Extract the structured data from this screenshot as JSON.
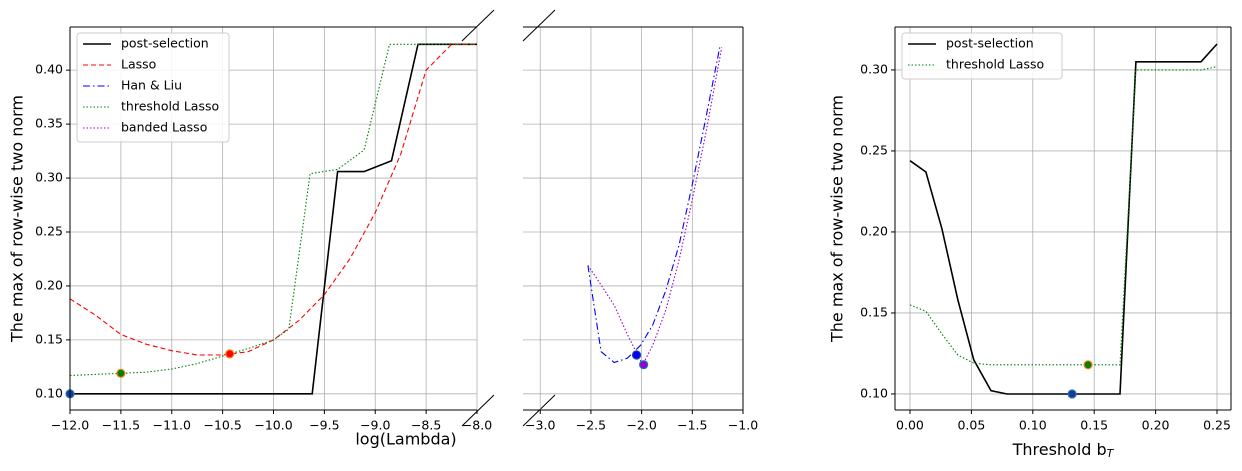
{
  "chart_data": [
    {
      "type": "line",
      "ylabel": "The max of row-wise two norm",
      "xlabel": "log(Lambda)",
      "xlim": [
        -12,
        -8
      ],
      "ylim": [
        0.085,
        0.44
      ],
      "grid": true,
      "legend": "upper left",
      "xticks": [
        {
          "value": -12,
          "label": "−12.0"
        },
        {
          "value": -11.5,
          "label": "−11.5"
        },
        {
          "value": -11,
          "label": "−11.0"
        },
        {
          "value": -10.5,
          "label": "−10.5"
        },
        {
          "value": -10,
          "label": "−10.0"
        },
        {
          "value": -9.5,
          "label": "−9.5"
        },
        {
          "value": -9,
          "label": "−9.0"
        },
        {
          "value": -8.5,
          "label": "−8.5"
        },
        {
          "value": -8,
          "label": "−8.0"
        }
      ],
      "yticks": [
        {
          "value": 0.1,
          "label": "0.10"
        },
        0.15,
        {
          "value": 0.2,
          "label": "0.20"
        },
        0.25,
        {
          "value": 0.3,
          "label": "0.30"
        },
        0.35,
        {
          "value": 0.4,
          "label": "0.40"
        }
      ],
      "series": [
        {
          "name": "post-selection",
          "color": "#000000",
          "dash": "none",
          "width": 1.6,
          "x": [
            -12,
            -9.62,
            -9.37,
            -9.11,
            -8.84,
            -8.58,
            -8.0
          ],
          "values": [
            0.1,
            0.1,
            0.306,
            0.306,
            0.316,
            0.424,
            0.424
          ]
        },
        {
          "name": "Lasso",
          "color": "#ff0000",
          "dash": "5,3",
          "width": 1.1,
          "x": [
            -12,
            -11.75,
            -11.5,
            -11.25,
            -11.0,
            -10.75,
            -10.5,
            -10.25,
            -10.0,
            -9.75,
            -9.5,
            -9.25,
            -9.0,
            -8.75,
            -8.5,
            -8.25,
            -8.0
          ],
          "values": [
            0.188,
            0.173,
            0.155,
            0.146,
            0.14,
            0.136,
            0.136,
            0.139,
            0.15,
            0.168,
            0.192,
            0.225,
            0.268,
            0.322,
            0.4,
            0.424,
            0.424
          ]
        },
        {
          "name": "Han & Liu",
          "color": "#0000ff",
          "dash": "7,3,1.5,3",
          "width": 1.1,
          "x": [],
          "values": []
        },
        {
          "name": "threshold Lasso",
          "color": "#008000",
          "dash": "1.5,2",
          "width": 1.1,
          "x": [
            -12,
            -11.75,
            -11.5,
            -11.25,
            -11.0,
            -10.75,
            -10.5,
            -10.25,
            -10.0,
            -9.85,
            -9.64,
            -9.37,
            -9.11,
            -8.86,
            -8.0
          ],
          "values": [
            0.117,
            0.118,
            0.119,
            0.12,
            0.123,
            0.128,
            0.135,
            0.142,
            0.15,
            0.16,
            0.304,
            0.308,
            0.326,
            0.424,
            0.424
          ]
        },
        {
          "name": "banded Lasso",
          "color": "#9400d3",
          "dash": "1.5,2",
          "width": 1.1,
          "x": [],
          "values": []
        }
      ],
      "points": [
        {
          "x": -12,
          "y": 0.1,
          "color": "#1a3a9a",
          "edgecolor": "#1f77b4"
        },
        {
          "x": -11.5,
          "y": 0.119,
          "color": "#008000",
          "edgecolor": "#ff7f0e"
        },
        {
          "x": -10.43,
          "y": 0.137,
          "color": "#ff0000",
          "edgecolor": "#ff7f0e"
        }
      ]
    },
    {
      "type": "line",
      "xlim": [
        -3.17,
        -1.0
      ],
      "ylim": [
        0.085,
        0.44
      ],
      "grid": true,
      "xticks": [
        {
          "value": -3,
          "label": "−3.0"
        },
        {
          "value": -2.5,
          "label": "−2.5"
        },
        {
          "value": -2,
          "label": "−2.0"
        },
        {
          "value": -1.5,
          "label": "−1.5"
        },
        {
          "value": -1,
          "label": "−1.0"
        }
      ],
      "yticks": [
        0.1,
        0.15,
        0.2,
        0.25,
        0.3,
        0.35,
        0.4
      ],
      "series": [
        {
          "color": "#0000ff",
          "dash": "7,3,1.5,3",
          "width": 1.1,
          "x": [
            -2.53,
            -2.4,
            -2.27,
            -2.14,
            -2.01,
            -1.89,
            -1.76,
            -1.63,
            -1.5,
            -1.37,
            -1.23
          ],
          "values": [
            0.219,
            0.139,
            0.129,
            0.133,
            0.145,
            0.164,
            0.196,
            0.238,
            0.294,
            0.354,
            0.421
          ]
        },
        {
          "color": "#9400d3",
          "dash": "1.5,2",
          "width": 1.1,
          "x": [
            -2.53,
            -2.4,
            -2.27,
            -2.14,
            -1.99,
            -1.89,
            -1.76,
            -1.63,
            -1.5,
            -1.37,
            -1.21
          ],
          "values": [
            0.219,
            0.201,
            0.182,
            0.155,
            0.127,
            0.145,
            0.178,
            0.224,
            0.28,
            0.34,
            0.421
          ]
        }
      ],
      "points": [
        {
          "x": -2.05,
          "y": 0.136,
          "color": "#0000ff",
          "edgecolor": "#1f3d99"
        },
        {
          "x": -1.98,
          "y": 0.127,
          "color": "#9400d3",
          "edgecolor": "#1f77b4"
        }
      ]
    },
    {
      "type": "line",
      "ylabel": "The max of row-wise two norm",
      "xlabel": {
        "text": "Threshold b",
        "subscript": "T"
      },
      "xlim": [
        -0.0122,
        0.2614
      ],
      "ylim": [
        0.0901,
        0.3265
      ],
      "grid": true,
      "legend": "upper left",
      "xticks": [
        {
          "value": 0,
          "label": "0.00"
        },
        0.05,
        {
          "value": 0.1,
          "label": "0.10"
        },
        0.15,
        {
          "value": 0.2,
          "label": "0.20"
        },
        0.25
      ],
      "yticks": [
        {
          "value": 0.1,
          "label": "0.10"
        },
        0.15,
        {
          "value": 0.2,
          "label": "0.20"
        },
        0.25,
        {
          "value": 0.3,
          "label": "0.30"
        }
      ],
      "series": [
        {
          "name": "post-selection",
          "color": "#000000",
          "dash": "none",
          "width": 1.6,
          "x": [
            0,
            0.013,
            0.026,
            0.039,
            0.052,
            0.066,
            0.079,
            0.171,
            0.184,
            0.237,
            0.25
          ],
          "values": [
            0.244,
            0.237,
            0.202,
            0.158,
            0.121,
            0.102,
            0.1,
            0.1,
            0.305,
            0.305,
            0.316
          ]
        },
        {
          "name": "threshold Lasso",
          "color": "#008000",
          "dash": "1.5,2",
          "width": 1.1,
          "x": [
            0,
            0.013,
            0.026,
            0.039,
            0.052,
            0.066,
            0.171,
            0.184,
            0.237,
            0.25
          ],
          "values": [
            0.155,
            0.151,
            0.137,
            0.124,
            0.119,
            0.118,
            0.118,
            0.3,
            0.3,
            0.302
          ]
        }
      ],
      "points": [
        {
          "x": 0.132,
          "y": 0.1,
          "color": "#1a3a9a",
          "edgecolor": "#1f77b4"
        },
        {
          "x": 0.145,
          "y": 0.118,
          "color": "#008000",
          "edgecolor": "#ff7f0e"
        }
      ]
    }
  ]
}
